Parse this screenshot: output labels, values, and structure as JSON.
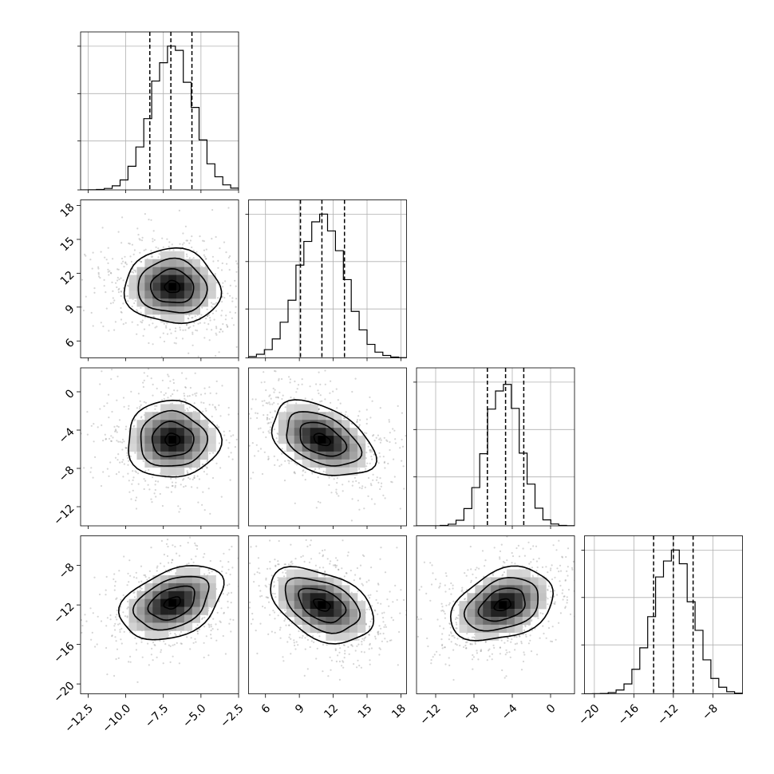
{
  "chart_data": {
    "type": "corner",
    "grid": true,
    "parameters": [
      {
        "range": [
          -13,
          -2.5
        ],
        "ticks": [
          -12.5,
          -10.0,
          -7.5,
          -5.0,
          -2.5
        ],
        "tick_labels": [
          "−12.5",
          "−10.0",
          "−7.5",
          "−5.0",
          "−2.5"
        ],
        "quantiles": [
          -8.4,
          -7.0,
          -5.6
        ],
        "mode": -6.9,
        "hist_width": 1.4
      },
      {
        "range": [
          4.5,
          18.5
        ],
        "ticks": [
          6,
          9,
          12,
          15,
          18
        ],
        "tick_labels": [
          "6",
          "9",
          "12",
          "15",
          "18"
        ],
        "quantiles": [
          9.1,
          11.0,
          13.0
        ],
        "mode": 11.0,
        "hist_width": 2.0
      },
      {
        "range": [
          -14,
          2.5
        ],
        "ticks": [
          -12,
          -8,
          -4,
          0
        ],
        "tick_labels": [
          "−12",
          "−8",
          "−4",
          "0"
        ],
        "quantiles": [
          -6.6,
          -4.7,
          -2.8
        ],
        "mode": -4.9,
        "hist_width": 1.8
      },
      {
        "range": [
          -21,
          -5
        ],
        "ticks": [
          -20,
          -16,
          -12,
          -8
        ],
        "tick_labels": [
          "−20",
          "−16",
          "−12",
          "−8"
        ],
        "quantiles": [
          -14.0,
          -12.0,
          -10.0
        ],
        "mode": -12.0,
        "hist_width": 2.0
      }
    ],
    "pairs": [
      {
        "row": 1,
        "col": 0,
        "center": [
          -6.9,
          10.8
        ],
        "rho": -0.1
      },
      {
        "row": 2,
        "col": 0,
        "center": [
          -6.9,
          -5.0
        ],
        "rho": 0.0
      },
      {
        "row": 2,
        "col": 1,
        "center": [
          11.0,
          -5.0
        ],
        "rho": -0.55
      },
      {
        "row": 3,
        "col": 0,
        "center": [
          -6.9,
          -11.8
        ],
        "rho": 0.5
      },
      {
        "row": 3,
        "col": 1,
        "center": [
          11.0,
          -12.0
        ],
        "rho": -0.55
      },
      {
        "row": 3,
        "col": 2,
        "center": [
          -5.0,
          -12.0
        ],
        "rho": 0.45
      }
    ]
  }
}
